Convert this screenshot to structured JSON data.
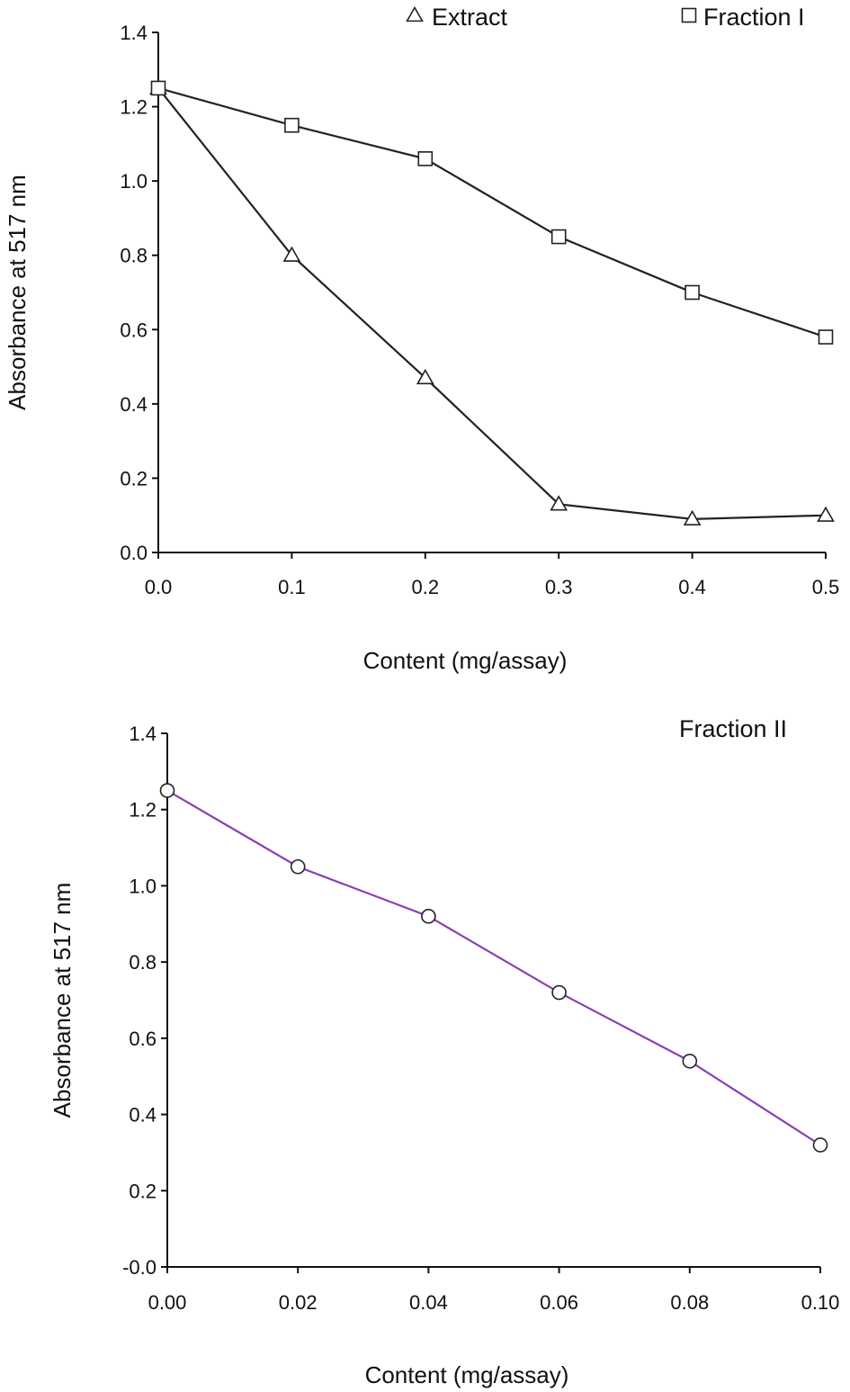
{
  "chart_data": [
    {
      "type": "line",
      "xlabel": "Content (mg/assay)",
      "ylabel": "Absorbance at 517 nm",
      "xlim": [
        0.0,
        0.5
      ],
      "ylim": [
        0.0,
        1.4
      ],
      "x_ticks": [
        "0.0",
        "0.1",
        "0.2",
        "0.3",
        "0.4",
        "0.5"
      ],
      "y_ticks": [
        "0.0",
        "0.2",
        "0.4",
        "0.6",
        "0.8",
        "1.0",
        "1.2",
        "1.4"
      ],
      "grid": false,
      "legend_position": "top",
      "x": [
        0.0,
        0.1,
        0.2,
        0.3,
        0.4,
        0.5
      ],
      "series": [
        {
          "name": "Extract",
          "marker": "triangle",
          "color": "#222222",
          "values": [
            1.25,
            0.8,
            0.47,
            0.13,
            0.09,
            0.1
          ]
        },
        {
          "name": "Fraction I",
          "marker": "square",
          "color": "#222222",
          "values": [
            1.25,
            1.15,
            1.06,
            0.85,
            0.7,
            0.58
          ]
        }
      ]
    },
    {
      "type": "line",
      "xlabel": "Content (mg/assay)",
      "ylabel": "Absorbance at 517 nm",
      "xlim": [
        0.0,
        0.1
      ],
      "ylim": [
        0.0,
        1.4
      ],
      "x_ticks": [
        "0.00",
        "0.02",
        "0.04",
        "0.06",
        "0.08",
        "0.10"
      ],
      "y_ticks": [
        "-0.0",
        "0.2",
        "0.4",
        "0.6",
        "0.8",
        "1.0",
        "1.2",
        "1.4"
      ],
      "grid": false,
      "legend_position": "top-right",
      "x": [
        0.0,
        0.02,
        0.04,
        0.06,
        0.08,
        0.1
      ],
      "series": [
        {
          "name": "Fraction  II",
          "marker": "circle",
          "color": "#8a3fb5",
          "values": [
            1.25,
            1.05,
            0.92,
            0.72,
            0.54,
            0.32
          ]
        }
      ]
    }
  ]
}
